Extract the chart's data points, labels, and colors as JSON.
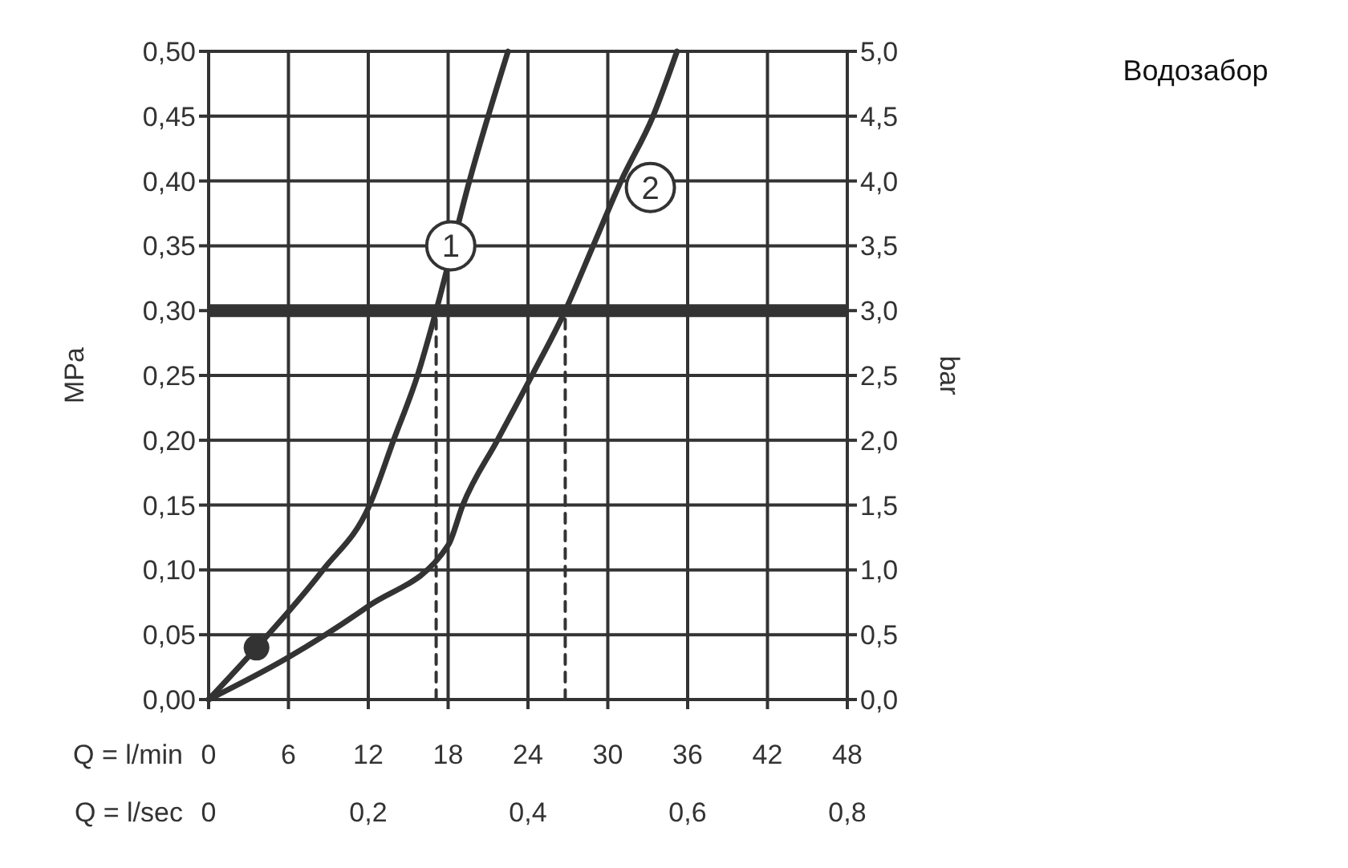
{
  "chart_data": {
    "type": "line",
    "title": "Водозабор",
    "xlabel": "Q = l/min",
    "x2label": "Q = l/sec",
    "ylabel": "MPa",
    "y2label": "bar",
    "xlim": [
      0,
      48
    ],
    "xticks": [
      0,
      6,
      12,
      18,
      24,
      30,
      36,
      42,
      48
    ],
    "x2lim": [
      0,
      0.8
    ],
    "x2ticks": [
      {
        "value": 0,
        "label": "0"
      },
      {
        "value": 0.2,
        "label": "0,2"
      },
      {
        "value": 0.4,
        "label": "0,4"
      },
      {
        "value": 0.6,
        "label": "0,6"
      },
      {
        "value": 0.8,
        "label": "0,8"
      }
    ],
    "ylim": [
      0,
      0.5
    ],
    "yticks": [
      {
        "value": 0,
        "label": "0,00"
      },
      {
        "value": 0.05,
        "label": "0,05"
      },
      {
        "value": 0.1,
        "label": "0,10"
      },
      {
        "value": 0.15,
        "label": "0,15"
      },
      {
        "value": 0.2,
        "label": "0,20"
      },
      {
        "value": 0.25,
        "label": "0,25"
      },
      {
        "value": 0.3,
        "label": "0,30"
      },
      {
        "value": 0.35,
        "label": "0,35"
      },
      {
        "value": 0.4,
        "label": "0,40"
      },
      {
        "value": 0.45,
        "label": "0,45"
      },
      {
        "value": 0.5,
        "label": "0,50"
      }
    ],
    "y2lim": [
      0,
      5
    ],
    "y2ticks": [
      {
        "value": 0,
        "label": "0,0"
      },
      {
        "value": 0.5,
        "label": "0,5"
      },
      {
        "value": 1,
        "label": "1,0"
      },
      {
        "value": 1.5,
        "label": "1,5"
      },
      {
        "value": 2,
        "label": "2,0"
      },
      {
        "value": 2.5,
        "label": "2,5"
      },
      {
        "value": 3,
        "label": "3,0"
      },
      {
        "value": 3.5,
        "label": "3,5"
      },
      {
        "value": 4,
        "label": "4,0"
      },
      {
        "value": 4.5,
        "label": "4,5"
      },
      {
        "value": 5,
        "label": "5,0"
      }
    ],
    "grid": true,
    "series": [
      {
        "color": "#333333",
        "line_style": "solid",
        "x": [
          0,
          3.6,
          8.6,
          12.1,
          13.9,
          15.7,
          17.1,
          19.6,
          22.5
        ],
        "values": [
          0,
          0.04,
          0.1,
          0.15,
          0.2,
          0.25,
          0.3,
          0.4,
          0.5
        ]
      },
      {
        "color": "#333333",
        "line_style": "solid",
        "x": [
          0,
          5.9,
          12,
          18,
          19.1,
          21.7,
          24.3,
          26.8,
          28.9,
          31,
          33.4,
          35.2
        ],
        "values": [
          0,
          0.032,
          0.072,
          0.119,
          0.15,
          0.2,
          0.25,
          0.3,
          0.35,
          0.4,
          0.45,
          0.5
        ]
      },
      {
        "type": "line",
        "color": "#333333",
        "line_style": "dashed",
        "x": [
          17.1,
          17.1
        ],
        "values": [
          0,
          0.3
        ]
      },
      {
        "type": "line",
        "color": "#333333",
        "line_style": "dashed",
        "x": [
          26.8,
          26.8
        ],
        "values": [
          0,
          0.3
        ]
      },
      {
        "type": "scatter",
        "color": "#333333",
        "marker": "circle",
        "x": [
          3.6
        ],
        "values": [
          0.04
        ]
      }
    ],
    "ref_lines": [
      {
        "axis": "y",
        "value": 0.3,
        "color": "#333333",
        "line_style": "solid"
      }
    ],
    "annotations": [
      {
        "text": "1",
        "x": 18.2,
        "y": 0.35
      },
      {
        "text": "2",
        "x": 33.2,
        "y": 0.395
      }
    ]
  }
}
